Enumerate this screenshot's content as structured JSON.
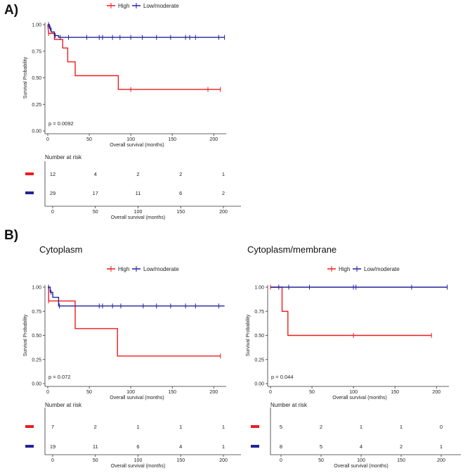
{
  "figure": {
    "colors": {
      "high": "#ee1c1c",
      "low": "#22229a",
      "axis": "#333333"
    },
    "panel_labels": [
      "A)",
      "B)"
    ]
  },
  "chart_data": [
    {
      "id": "A",
      "type": "line",
      "subtitle": "",
      "legend": [
        "High",
        "Low/moderate"
      ],
      "xlabel": "Overall survival (months)",
      "ylabel": "Survival Probability",
      "xlim": [
        0,
        215
      ],
      "ylim": [
        0,
        1
      ],
      "xticks": [
        0,
        50,
        100,
        150,
        200
      ],
      "xtick_labels": [
        "0",
        "50",
        "100",
        "150",
        "200"
      ],
      "yticks": [
        0,
        0.25,
        0.5,
        0.75,
        1
      ],
      "ytick_labels": [
        "0.00",
        "0.25",
        "0.50",
        "0.75",
        "1.00"
      ],
      "pvalue": "p = 0.0092",
      "series": [
        {
          "name": "High",
          "color_key": "high",
          "steps": [
            [
              0,
              1.0
            ],
            [
              1,
              0.917
            ],
            [
              8,
              0.917
            ],
            [
              8,
              0.86
            ],
            [
              18,
              0.86
            ],
            [
              18,
              0.78
            ],
            [
              24,
              0.78
            ],
            [
              24,
              0.65
            ],
            [
              33,
              0.65
            ],
            [
              33,
              0.52
            ],
            [
              85,
              0.52
            ],
            [
              85,
              0.39
            ],
            [
              208,
              0.39
            ]
          ],
          "censors": [
            [
              1,
              0.917
            ],
            [
              100,
              0.39
            ],
            [
              193,
              0.39
            ],
            [
              208,
              0.39
            ]
          ]
        },
        {
          "name": "Low/moderate",
          "color_key": "low",
          "steps": [
            [
              0,
              1.0
            ],
            [
              2,
              1.0
            ],
            [
              2,
              0.966
            ],
            [
              4,
              0.966
            ],
            [
              4,
              0.931
            ],
            [
              8,
              0.931
            ],
            [
              8,
              0.897
            ],
            [
              13,
              0.897
            ],
            [
              13,
              0.88
            ],
            [
              213,
              0.88
            ]
          ],
          "censors": [
            [
              1,
              1.0
            ],
            [
              3,
              0.966
            ],
            [
              9,
              0.897
            ],
            [
              15,
              0.88
            ],
            [
              25,
              0.88
            ],
            [
              47,
              0.88
            ],
            [
              62,
              0.88
            ],
            [
              66,
              0.88
            ],
            [
              78,
              0.88
            ],
            [
              87,
              0.88
            ],
            [
              100,
              0.88
            ],
            [
              114,
              0.88
            ],
            [
              131,
              0.88
            ],
            [
              148,
              0.88
            ],
            [
              166,
              0.88
            ],
            [
              171,
              0.88
            ],
            [
              178,
              0.88
            ],
            [
              206,
              0.88
            ],
            [
              213,
              0.88
            ]
          ]
        }
      ],
      "risk_table": {
        "title": "Number at risk",
        "xlabel": "Overall survival (months)",
        "xticks": [
          0,
          50,
          100,
          150,
          200
        ],
        "xtick_labels": [
          "0",
          "50",
          "100",
          "150",
          "200"
        ],
        "rows": [
          {
            "group": "High",
            "values": [
              "12",
              "4",
              "2",
              "2",
              "1"
            ]
          },
          {
            "group": "Low/moderate",
            "values": [
              "29",
              "17",
              "11",
              "6",
              "2"
            ]
          }
        ]
      }
    },
    {
      "id": "B1",
      "type": "line",
      "subtitle": "Cytoplasm",
      "legend": [
        "High",
        "Low/moderate"
      ],
      "xlabel": "Overall survival (months)",
      "ylabel": "Survival Probability",
      "xlim": [
        0,
        215
      ],
      "ylim": [
        0,
        1
      ],
      "xticks": [
        0,
        50,
        100,
        150,
        200
      ],
      "xtick_labels": [
        "0",
        "50",
        "100",
        "150",
        "200"
      ],
      "yticks": [
        0,
        0.25,
        0.5,
        0.75,
        1
      ],
      "ytick_labels": [
        "0.00",
        "0.25",
        "0.50",
        "0.75",
        "1.00"
      ],
      "pvalue": "p = 0.072",
      "series": [
        {
          "name": "High",
          "color_key": "high",
          "steps": [
            [
              0,
              1.0
            ],
            [
              1,
              1.0
            ],
            [
              1,
              0.857
            ],
            [
              33,
              0.857
            ],
            [
              33,
              0.571
            ],
            [
              84,
              0.571
            ],
            [
              84,
              0.286
            ],
            [
              208,
              0.286
            ]
          ],
          "censors": [
            [
              1,
              0.857
            ],
            [
              208,
              0.286
            ]
          ]
        },
        {
          "name": "Low/moderate",
          "color_key": "low",
          "steps": [
            [
              0,
              1.0
            ],
            [
              3,
              1.0
            ],
            [
              3,
              0.947
            ],
            [
              6,
              0.947
            ],
            [
              6,
              0.895
            ],
            [
              13,
              0.895
            ],
            [
              13,
              0.805
            ],
            [
              213,
              0.805
            ]
          ],
          "censors": [
            [
              1,
              1.0
            ],
            [
              4,
              0.947
            ],
            [
              14,
              0.805
            ],
            [
              62,
              0.805
            ],
            [
              66,
              0.805
            ],
            [
              78,
              0.805
            ],
            [
              88,
              0.805
            ],
            [
              115,
              0.805
            ],
            [
              131,
              0.805
            ],
            [
              148,
              0.805
            ],
            [
              166,
              0.805
            ],
            [
              178,
              0.805
            ],
            [
              206,
              0.805
            ]
          ]
        }
      ],
      "risk_table": {
        "title": "Number at risk",
        "xlabel": "Overall survival (months)",
        "xticks": [
          0,
          50,
          100,
          150,
          200
        ],
        "xtick_labels": [
          "0",
          "50",
          "100",
          "150",
          "200"
        ],
        "rows": [
          {
            "group": "High",
            "values": [
              "7",
              "2",
              "1",
              "1",
              "1"
            ]
          },
          {
            "group": "Low/moderate",
            "values": [
              "19",
              "11",
              "6",
              "4",
              "1"
            ]
          }
        ]
      }
    },
    {
      "id": "B2",
      "type": "line",
      "subtitle": "Cytoplasm/membrane",
      "legend": [
        "High",
        "Low/moderate"
      ],
      "xlabel": "Overall survival (months)",
      "ylabel": "Survival Probability",
      "xlim": [
        0,
        215
      ],
      "ylim": [
        0,
        1
      ],
      "xticks": [
        0,
        50,
        100,
        150,
        200
      ],
      "xtick_labels": [
        "0",
        "50",
        "100",
        "150",
        "200"
      ],
      "yticks": [
        0,
        0.25,
        0.5,
        0.75,
        1
      ],
      "ytick_labels": [
        "0.00",
        "0.25",
        "0.50",
        "0.75",
        "1.00"
      ],
      "pvalue": "p = 0.044",
      "series": [
        {
          "name": "High",
          "color_key": "high",
          "steps": [
            [
              0,
              1.0
            ],
            [
              14,
              1.0
            ],
            [
              14,
              0.75
            ],
            [
              21,
              0.75
            ],
            [
              21,
              0.5
            ],
            [
              194,
              0.5
            ]
          ],
          "censors": [
            [
              0,
              1.0
            ],
            [
              100,
              0.5
            ],
            [
              194,
              0.5
            ]
          ]
        },
        {
          "name": "Low/moderate",
          "color_key": "low",
          "steps": [
            [
              0,
              1.0
            ],
            [
              213,
              1.0
            ]
          ],
          "censors": [
            [
              10,
              1.0
            ],
            [
              22,
              1.0
            ],
            [
              47,
              1.0
            ],
            [
              100,
              1.0
            ],
            [
              103,
              1.0
            ],
            [
              170,
              1.0
            ],
            [
              213,
              1.0
            ]
          ]
        }
      ],
      "risk_table": {
        "title": "Number at risk",
        "xlabel": "Overall survival (months)",
        "xticks": [
          0,
          50,
          100,
          150,
          200
        ],
        "xtick_labels": [
          "0",
          "50",
          "100",
          "150",
          "200"
        ],
        "rows": [
          {
            "group": "High",
            "values": [
              "5",
              "2",
              "1",
              "1",
              "0"
            ]
          },
          {
            "group": "Low/moderate",
            "values": [
              "8",
              "5",
              "4",
              "2",
              "1"
            ]
          }
        ]
      }
    }
  ]
}
